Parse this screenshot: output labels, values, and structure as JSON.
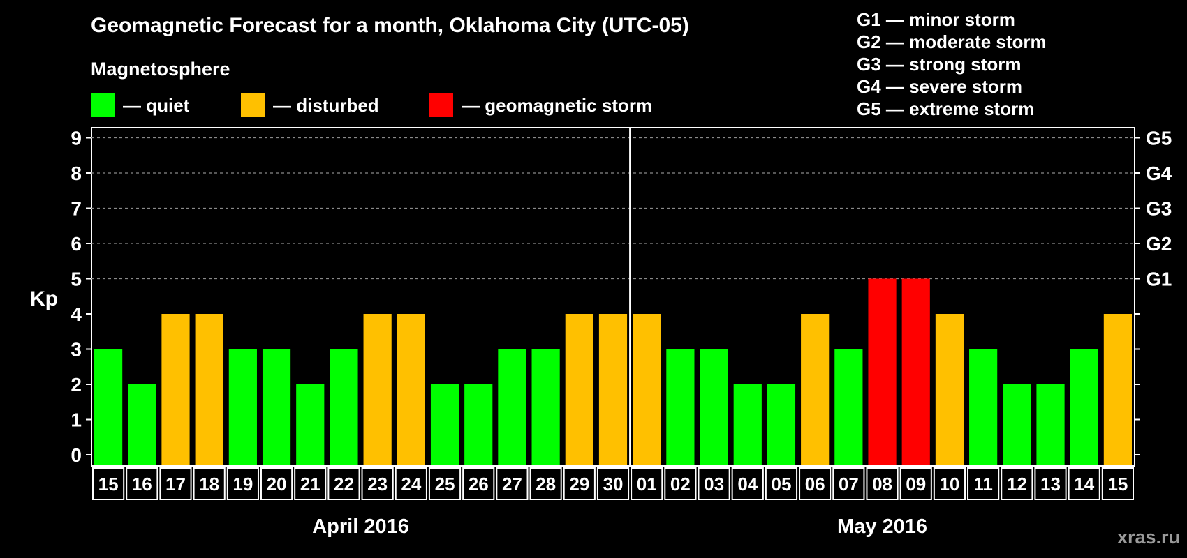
{
  "title": "Geomagnetic Forecast for a month, Oklahoma City (UTC-05)",
  "legend": {
    "heading": "Magnetosphere",
    "items": [
      {
        "label": "— quiet",
        "color": "#00ff00"
      },
      {
        "label": "— disturbed",
        "color": "#ffc000"
      },
      {
        "label": "— geomagnetic storm",
        "color": "#ff0000"
      }
    ]
  },
  "storm_scale": [
    "G1 — minor storm",
    "G2 — moderate storm",
    "G3 — strong storm",
    "G4 — severe storm",
    "G5 — extreme storm"
  ],
  "watermark": "xras.ru",
  "chart_data": {
    "type": "bar",
    "ylabel": "Kp",
    "ylim": [
      0,
      9
    ],
    "yticks": [
      0,
      1,
      2,
      3,
      4,
      5,
      6,
      7,
      8,
      9
    ],
    "right_axis_labels": [
      {
        "kp": 5,
        "label": "G1"
      },
      {
        "kp": 6,
        "label": "G2"
      },
      {
        "kp": 7,
        "label": "G3"
      },
      {
        "kp": 8,
        "label": "G4"
      },
      {
        "kp": 9,
        "label": "G5"
      }
    ],
    "grid": "dashed horizontal lines at Kp 5 to 9",
    "categories": [
      "15",
      "16",
      "17",
      "18",
      "19",
      "20",
      "21",
      "22",
      "23",
      "24",
      "25",
      "26",
      "27",
      "28",
      "29",
      "30",
      "01",
      "02",
      "03",
      "04",
      "05",
      "06",
      "07",
      "08",
      "09",
      "10",
      "11",
      "12",
      "13",
      "14",
      "15"
    ],
    "values": [
      3,
      2,
      4,
      4,
      3,
      3,
      2,
      3,
      4,
      4,
      2,
      2,
      3,
      3,
      4,
      4,
      4,
      3,
      3,
      2,
      2,
      4,
      3,
      5,
      5,
      4,
      3,
      2,
      2,
      3,
      4
    ],
    "color_rule": {
      "quiet": "Kp 0-3",
      "disturbed": "Kp 4",
      "geomagnetic storm": "Kp 5+"
    },
    "months": [
      {
        "label": "April 2016",
        "start": 0,
        "count": 16
      },
      {
        "label": "May 2016",
        "start": 16,
        "count": 15
      }
    ]
  }
}
